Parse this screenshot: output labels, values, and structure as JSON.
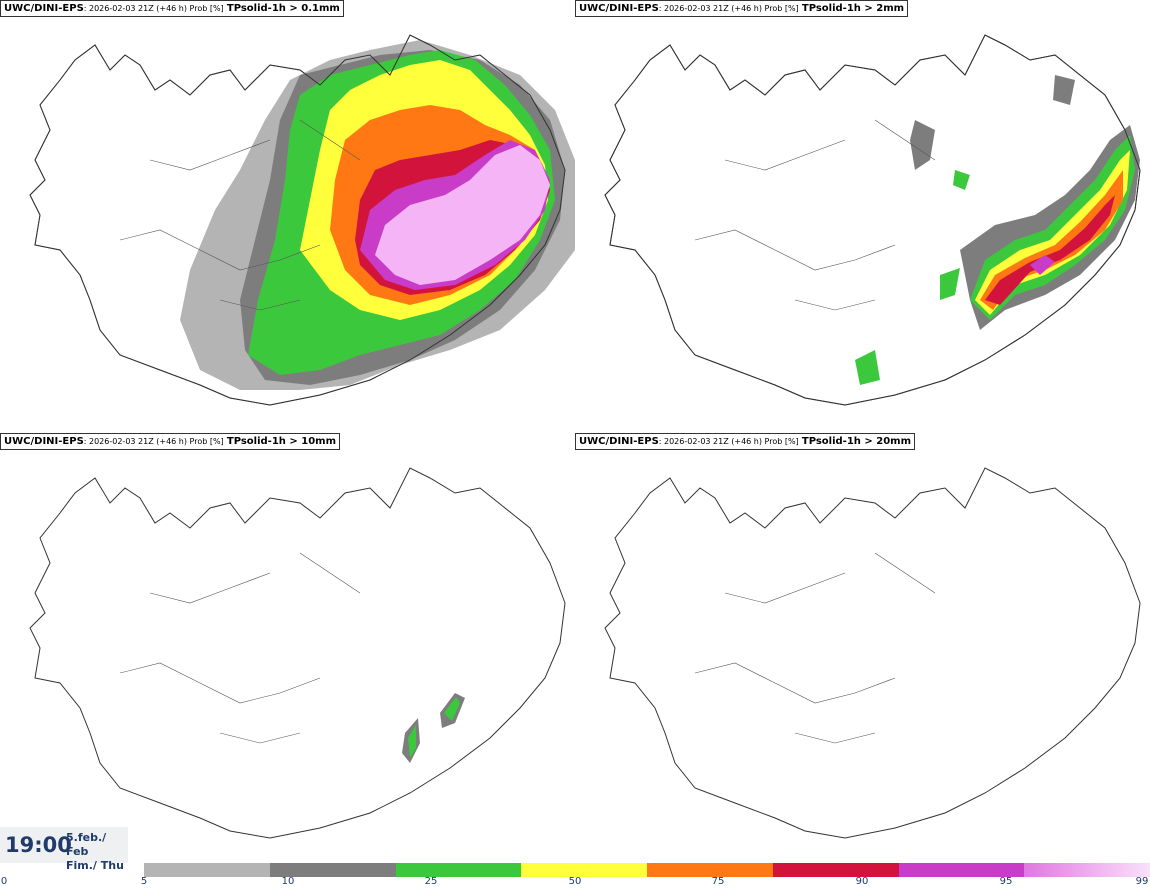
{
  "panels": [
    {
      "model": "UWC/DINI-EPS",
      "meta": ": 2026-02-03 21Z (+46 h) Prob [%]",
      "param": "TPsolid-1h > 0.1mm"
    },
    {
      "model": "UWC/DINI-EPS",
      "meta": ": 2026-02-03 21Z (+46 h) Prob [%]",
      "param": "TPsolid-1h > 2mm"
    },
    {
      "model": "UWC/DINI-EPS",
      "meta": ": 2026-02-03 21Z (+46 h) Prob [%]",
      "param": "TPsolid-1h > 10mm"
    },
    {
      "model": "UWC/DINI-EPS",
      "meta": ": 2026-02-03 21Z (+46 h) Prob [%]",
      "param": "TPsolid-1h > 20mm"
    }
  ],
  "time": {
    "clock": "19:00",
    "date_line1": "5.feb./ Feb",
    "date_line2": "Fim./ Thu"
  },
  "colorbar": {
    "ticks": [
      "0",
      "5",
      "10",
      "25",
      "50",
      "75",
      "90",
      "95",
      "99"
    ],
    "colors": [
      "#b4b4b4",
      "#7d7d7d",
      "#3cc83c",
      "#ffff3c",
      "#ff7814",
      "#d2143c",
      "#c83cc8",
      "#f5b4f5"
    ]
  }
}
